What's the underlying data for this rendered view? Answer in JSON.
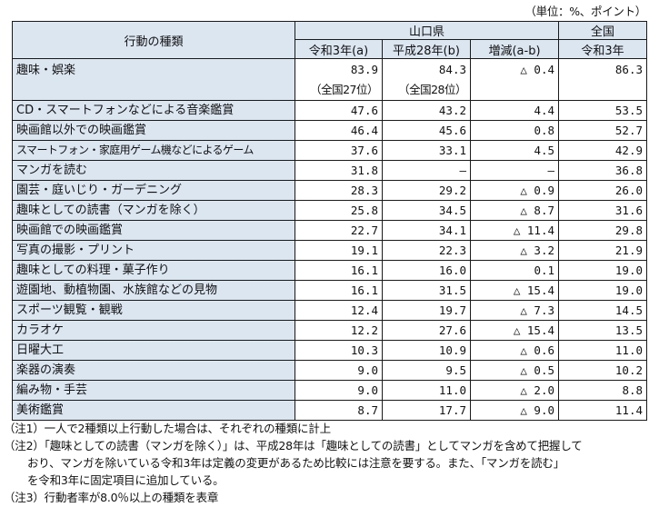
{
  "unit_label": "（単位：%、ポイント）",
  "header": {
    "activity_type": "行動の種類",
    "yamaguchi": "山口県",
    "national": "全国",
    "col_r3a": "令和3年(a)",
    "col_h28b": "平成28年(b)",
    "col_diff": "増減(a-b)",
    "col_national_r3": "令和3年"
  },
  "summary_row": {
    "label": "趣味・娯楽",
    "r3": "83.9",
    "r3_rank": "（全国27位）",
    "h28": "84.3",
    "h28_rank": "（全国28位）",
    "diff": "△ 0.4",
    "national": "86.3"
  },
  "rows": [
    {
      "label": "CD・スマートフォンなどによる音楽鑑賞",
      "r3": "47.6",
      "h28": "43.2",
      "diff": "4.4",
      "national": "53.5"
    },
    {
      "label": "映画館以外での映画鑑賞",
      "r3": "46.4",
      "h28": "45.6",
      "diff": "0.8",
      "national": "52.7"
    },
    {
      "label": "スマートフォン・家庭用ゲーム機などによるゲーム",
      "r3": "37.6",
      "h28": "33.1",
      "diff": "4.5",
      "national": "42.9"
    },
    {
      "label": "マンガを読む",
      "r3": "31.8",
      "h28": "—",
      "diff": "—",
      "national": "36.8"
    },
    {
      "label": "園芸・庭いじり・ガーデニング",
      "r3": "28.3",
      "h28": "29.2",
      "diff": "△ 0.9",
      "national": "26.0"
    },
    {
      "label": "趣味としての読書（マンガを除く）",
      "r3": "25.8",
      "h28": "34.5",
      "diff": "△ 8.7",
      "national": "31.6"
    },
    {
      "label": "映画館での映画鑑賞",
      "r3": "22.7",
      "h28": "34.1",
      "diff": "△ 11.4",
      "national": "29.8"
    },
    {
      "label": "写真の撮影・プリント",
      "r3": "19.1",
      "h28": "22.3",
      "diff": "△ 3.2",
      "national": "21.9"
    },
    {
      "label": "趣味としての料理・菓子作り",
      "r3": "16.1",
      "h28": "16.0",
      "diff": "0.1",
      "national": "19.0"
    },
    {
      "label": "遊園地、動植物園、水族館などの見物",
      "r3": "16.1",
      "h28": "31.5",
      "diff": "△ 15.4",
      "national": "19.0"
    },
    {
      "label": "スポーツ観覧・観戦",
      "r3": "12.4",
      "h28": "19.7",
      "diff": "△ 7.3",
      "national": "14.5"
    },
    {
      "label": "カラオケ",
      "r3": "12.2",
      "h28": "27.6",
      "diff": "△ 15.4",
      "national": "13.5"
    },
    {
      "label": "日曜大工",
      "r3": "10.3",
      "h28": "10.9",
      "diff": "△ 0.6",
      "national": "11.0"
    },
    {
      "label": "楽器の演奏",
      "r3": "9.0",
      "h28": "9.5",
      "diff": "△ 0.5",
      "national": "10.2"
    },
    {
      "label": "編み物・手芸",
      "r3": "9.0",
      "h28": "11.0",
      "diff": "△ 2.0",
      "national": "8.8"
    },
    {
      "label": "美術鑑賞",
      "r3": "8.7",
      "h28": "17.7",
      "diff": "△ 9.0",
      "national": "11.4"
    }
  ],
  "notes": {
    "note1": "（注1）一人で2種類以上行動した場合は、それぞれの種類に計上",
    "note2_line1": "（注2）「趣味としての読書（マンガを除く）」は、平成28年は「趣味としての読書」としてマンガを含めて把握して",
    "note2_line2": "おり、マンガを除いている令和3年は定義の変更があるため比較には注意を要する。また、「マンガを読む」",
    "note2_line3": "を令和3年に固定項目に追加している。",
    "note3": "（注3）行動者率が8.0％以上の種類を表章"
  }
}
